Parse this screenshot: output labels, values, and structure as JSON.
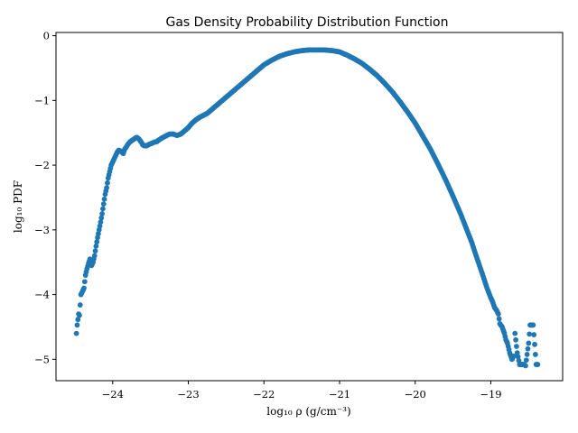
{
  "chart_data": {
    "type": "scatter",
    "title": "Gas Density Probability Distribution Function",
    "xlabel": "log₁₀ ρ (g/cm⁻³)",
    "ylabel": "log₁₀ PDF",
    "xlim": [
      -24.75,
      -18.05
    ],
    "ylim": [
      -5.33,
      0.05
    ],
    "x_ticks": [
      -24,
      -23,
      -22,
      -21,
      -20,
      -19
    ],
    "x_tick_labels": [
      "−24",
      "−23",
      "−22",
      "−21",
      "−20",
      "−19"
    ],
    "y_ticks": [
      0,
      -1,
      -2,
      -3,
      -4,
      -5
    ],
    "y_tick_labels": [
      "0",
      "−1",
      "−2",
      "−3",
      "−4",
      "−5"
    ],
    "grid": false,
    "marker_color": "#1f77b4",
    "series": [
      {
        "x": [
          -24.48,
          -24.47,
          -24.45,
          -24.44,
          -24.42,
          -24.4,
          -24.38,
          -24.36,
          -24.34,
          -24.32,
          -24.3,
          -24.28,
          -24.26,
          -24.24,
          -24.22,
          -24.2,
          -24.18,
          -24.16,
          -24.14,
          -24.12,
          -24.1,
          -24.08,
          -24.06,
          -24.04,
          -24.02,
          -24.0,
          -23.98,
          -23.96,
          -23.94,
          -23.92,
          -23.9,
          -23.88,
          -23.86,
          -23.84,
          -23.82,
          -23.8,
          -23.78,
          -23.75,
          -23.72,
          -23.7,
          -23.68,
          -23.65,
          -23.62,
          -23.6,
          -23.58,
          -23.55,
          -23.52,
          -23.5,
          -23.48,
          -23.46,
          -23.44,
          -23.42,
          -23.4,
          -23.35,
          -23.3,
          -23.25,
          -23.2,
          -23.15,
          -23.1,
          -23.05,
          -23.0,
          -22.95,
          -22.9,
          -22.85,
          -22.8,
          -22.75,
          -22.7,
          -22.6,
          -22.5,
          -22.4,
          -22.3,
          -22.2,
          -22.1,
          -22.0,
          -21.9,
          -21.8,
          -21.7,
          -21.6,
          -21.5,
          -21.4,
          -21.3,
          -21.2,
          -21.1,
          -21.0,
          -20.9,
          -20.8,
          -20.7,
          -20.6,
          -20.5,
          -20.4,
          -20.3,
          -20.2,
          -20.1,
          -20.0,
          -19.9,
          -19.8,
          -19.7,
          -19.6,
          -19.5,
          -19.4,
          -19.35,
          -19.3,
          -19.25,
          -19.2,
          -19.15,
          -19.1,
          -19.05,
          -19.0,
          -18.98,
          -18.95,
          -18.92,
          -18.9,
          -18.88,
          -18.85,
          -18.82,
          -18.8,
          -18.78,
          -18.75,
          -18.72,
          -18.7,
          -18.68,
          -18.65,
          -18.62,
          -18.6,
          -18.58,
          -18.56,
          -18.54,
          -18.5,
          -18.48,
          -18.46,
          -18.44,
          -18.42,
          -18.4,
          -18.38
        ],
        "y": [
          -4.6,
          -4.47,
          -4.3,
          -4.32,
          -4.0,
          -3.95,
          -3.9,
          -3.7,
          -3.6,
          -3.52,
          -3.45,
          -3.55,
          -3.5,
          -3.4,
          -3.25,
          -3.12,
          -3.0,
          -2.88,
          -2.75,
          -2.6,
          -2.45,
          -2.35,
          -2.2,
          -2.1,
          -2.0,
          -1.95,
          -1.9,
          -1.85,
          -1.8,
          -1.77,
          -1.78,
          -1.8,
          -1.82,
          -1.75,
          -1.72,
          -1.68,
          -1.65,
          -1.62,
          -1.6,
          -1.58,
          -1.57,
          -1.6,
          -1.65,
          -1.69,
          -1.7,
          -1.7,
          -1.68,
          -1.67,
          -1.66,
          -1.65,
          -1.64,
          -1.64,
          -1.62,
          -1.58,
          -1.55,
          -1.52,
          -1.52,
          -1.54,
          -1.52,
          -1.47,
          -1.42,
          -1.35,
          -1.3,
          -1.26,
          -1.23,
          -1.2,
          -1.15,
          -1.05,
          -0.95,
          -0.85,
          -0.75,
          -0.65,
          -0.55,
          -0.45,
          -0.38,
          -0.32,
          -0.28,
          -0.25,
          -0.23,
          -0.22,
          -0.22,
          -0.22,
          -0.23,
          -0.25,
          -0.3,
          -0.36,
          -0.43,
          -0.52,
          -0.62,
          -0.74,
          -0.87,
          -1.02,
          -1.18,
          -1.35,
          -1.55,
          -1.75,
          -1.98,
          -2.22,
          -2.48,
          -2.75,
          -2.9,
          -3.05,
          -3.2,
          -3.38,
          -3.55,
          -3.72,
          -3.9,
          -4.05,
          -4.1,
          -4.2,
          -4.25,
          -4.3,
          -4.45,
          -4.5,
          -4.6,
          -4.7,
          -4.75,
          -4.9,
          -5.0,
          -4.95,
          -4.6,
          -4.9,
          -5.08,
          -5.08,
          -5.08,
          -5.08,
          -5.1,
          -4.75,
          -4.47,
          -4.47,
          -4.47,
          -4.77,
          -5.08,
          -5.08
        ]
      }
    ]
  }
}
